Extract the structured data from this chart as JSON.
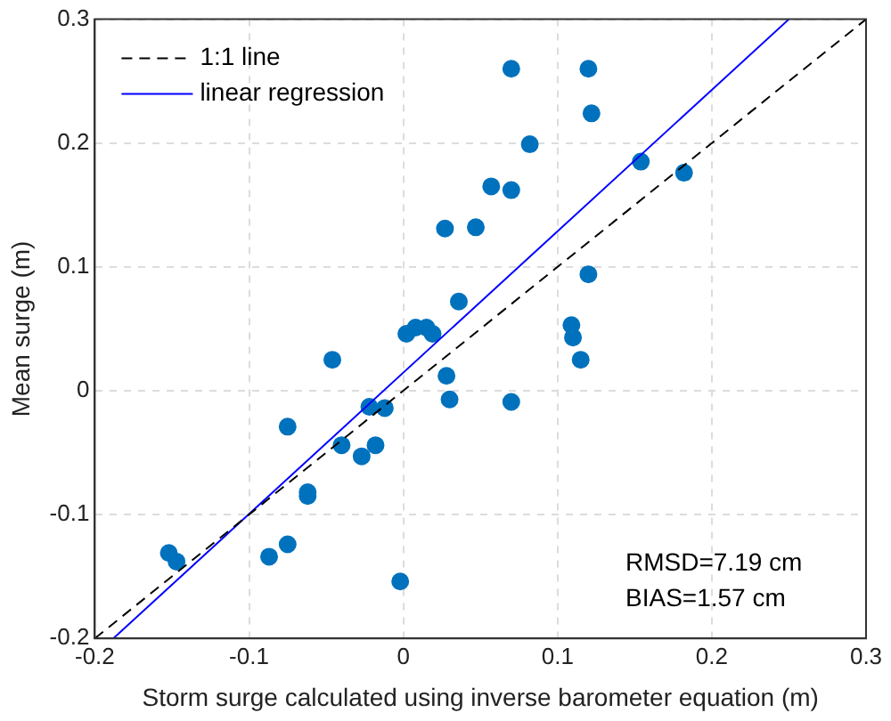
{
  "chart_data": {
    "type": "scatter",
    "xlabel": "Storm surge calculated using inverse barometer equation (m)",
    "ylabel": "Mean surge (m)",
    "xlim": [
      -0.2,
      0.3
    ],
    "ylim": [
      -0.2,
      0.3
    ],
    "xticks": [
      -0.2,
      -0.1,
      0,
      0.1,
      0.2,
      0.3
    ],
    "yticks": [
      -0.2,
      -0.1,
      0,
      0.1,
      0.2,
      0.3
    ],
    "grid": true,
    "legend": "top left",
    "series": [
      {
        "type": "line",
        "name": "1:1 line",
        "color": "#000000",
        "line_style": "dashed",
        "marker": "none",
        "x": [
          -0.2,
          0.3
        ],
        "values": [
          -0.2,
          0.3
        ]
      },
      {
        "type": "line",
        "name": "linear regression",
        "color": "#0000ff",
        "line_style": "solid",
        "marker": "none",
        "x": [
          -0.188,
          0.25
        ],
        "values": [
          -0.2,
          0.3
        ]
      },
      {
        "type": "scatter",
        "color": "#0072bd",
        "marker": "circle",
        "x": [
          -0.152,
          -0.147,
          -0.087,
          -0.075,
          -0.075,
          -0.062,
          -0.062,
          -0.046,
          -0.04,
          -0.027,
          -0.022,
          -0.018,
          -0.012,
          -0.002,
          0.002,
          0.008,
          0.015,
          0.019,
          0.028,
          0.03,
          0.027,
          0.036,
          0.047,
          0.057,
          0.07,
          0.07,
          0.07,
          0.082,
          0.109,
          0.11,
          0.115,
          0.12,
          0.122,
          0.12,
          0.154,
          0.182
        ],
        "values": [
          -0.131,
          -0.138,
          -0.134,
          -0.124,
          -0.029,
          -0.082,
          -0.085,
          0.025,
          -0.044,
          -0.053,
          -0.013,
          -0.044,
          -0.014,
          -0.154,
          0.046,
          0.051,
          0.051,
          0.046,
          0.012,
          -0.007,
          0.131,
          0.072,
          0.132,
          0.165,
          0.162,
          0.26,
          -0.009,
          0.199,
          0.053,
          0.043,
          0.025,
          0.26,
          0.224,
          0.094,
          0.185,
          0.176
        ]
      }
    ],
    "annotations": [
      "RMSD=7.19 cm",
      "BIAS=1.57 cm"
    ]
  }
}
